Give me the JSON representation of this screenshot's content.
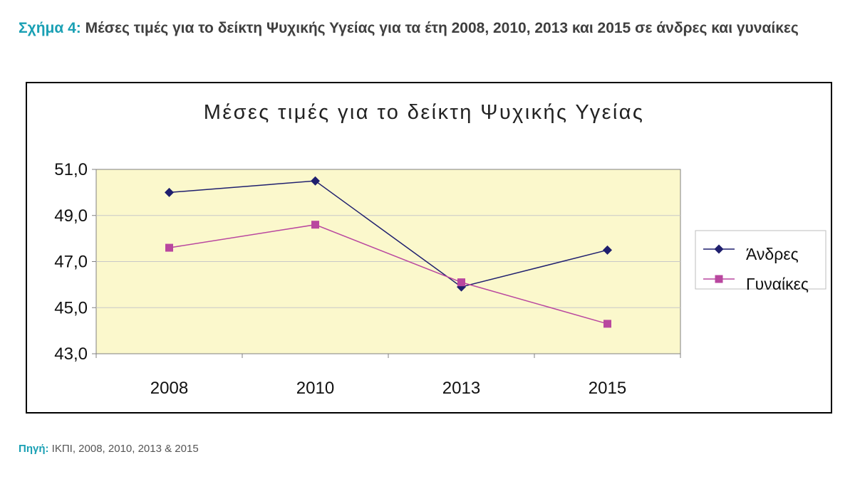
{
  "caption": {
    "label": "Σχήμα 4:",
    "text": "Μέσες τιμές για το δείκτη Ψυχικής Υγείας για τα έτη 2008, 2010, 2013 και 2015 σε άνδρες και γυναίκες"
  },
  "source": {
    "label": "Πηγή:",
    "text": "ΙΚΠΙ, 2008, 2010, 2013 & 2015"
  },
  "chart_data": {
    "type": "line",
    "title": "Μέσες τιμές για το δείκτη Ψυχικής Υγείας",
    "categories": [
      "2008",
      "2010",
      "2013",
      "2015"
    ],
    "y_ticks": [
      "43,0",
      "45,0",
      "47,0",
      "49,0",
      "51,0"
    ],
    "ylim": [
      43,
      51
    ],
    "grid": true,
    "legend_position": "right",
    "plot_background": "#fbf8cc",
    "series": [
      {
        "name": "Άνδρες",
        "values": [
          50.0,
          50.5,
          45.9,
          47.5
        ],
        "color": "#1f1f6e",
        "marker": "diamond"
      },
      {
        "name": "Γυναίκες",
        "values": [
          47.6,
          48.6,
          46.1,
          44.3
        ],
        "color": "#b9479f",
        "marker": "square"
      }
    ]
  }
}
